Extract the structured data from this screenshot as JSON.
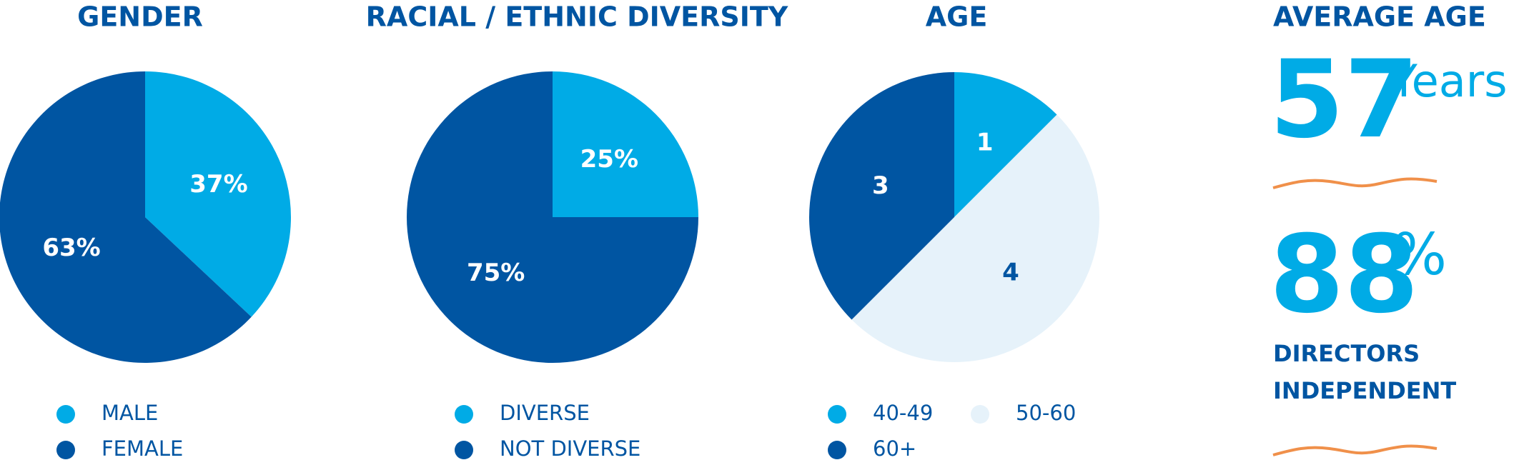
{
  "chart_data": [
    {
      "type": "pie",
      "title": "GENDER",
      "categories": [
        "MALE",
        "FEMALE"
      ],
      "values": [
        37,
        63
      ],
      "value_labels": [
        "37%",
        "63%"
      ],
      "colors": [
        "#00ABE6",
        "#0055A2"
      ]
    },
    {
      "type": "pie",
      "title": "RACIAL / ETHNIC DIVERSITY",
      "categories": [
        "DIVERSE",
        "NOT DIVERSE"
      ],
      "values": [
        25,
        75
      ],
      "value_labels": [
        "25%",
        "75%"
      ],
      "colors": [
        "#00ABE6",
        "#0055A2"
      ]
    },
    {
      "type": "pie",
      "title": "AGE",
      "categories": [
        "40-49",
        "50-60",
        "60+"
      ],
      "values": [
        1,
        4,
        3
      ],
      "colors": [
        "#00ABE6",
        "#E6F2FA",
        "#0055A2"
      ]
    }
  ],
  "stats": {
    "title": "AVERAGE AGE",
    "average_age": {
      "value": 57,
      "unit": "Years"
    },
    "independent": {
      "value": 88,
      "unit": "%",
      "label_lines": [
        "DIRECTORS",
        "INDEPENDENT"
      ]
    }
  }
}
